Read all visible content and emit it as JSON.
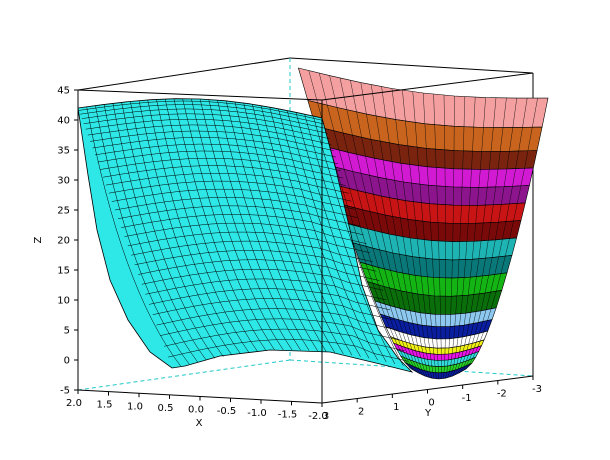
{
  "chart_data": {
    "type": "surface-3d",
    "title": "",
    "xlabel": "X",
    "ylabel": "Y",
    "zlabel": "Z",
    "x_ticks": [
      "2.0",
      "1.5",
      "1.0",
      "0.5",
      "0.0",
      "-0.5",
      "-1.0",
      "-1.5",
      "-2.0"
    ],
    "y_ticks": [
      "3",
      "2",
      "1",
      "0",
      "-1",
      "-2",
      "-3"
    ],
    "z_ticks": [
      "-5",
      "0",
      "5",
      "10",
      "15",
      "20",
      "25",
      "30",
      "35",
      "40",
      "45"
    ],
    "xlim": [
      -2,
      2
    ],
    "ylim": [
      -3,
      3
    ],
    "zlim": [
      -5,
      45
    ],
    "surface_left": {
      "description_x_range": [
        -2,
        2
      ],
      "profile_z": [
        41.5,
        30,
        20,
        11,
        5,
        1.5,
        0,
        0.5,
        2,
        4,
        6
      ]
    },
    "surface_right_bands": [
      {
        "z_range": [
          40,
          45
        ],
        "color": "#f4a0a0"
      },
      {
        "z_range": [
          36,
          40
        ],
        "color": "#c8641e"
      },
      {
        "z_range": [
          33,
          36
        ],
        "color": "#7a2410"
      },
      {
        "z_range": [
          30,
          33
        ],
        "color": "#d21ad2"
      },
      {
        "z_range": [
          27,
          30
        ],
        "color": "#8c148c"
      },
      {
        "z_range": [
          24,
          27
        ],
        "color": "#c81414"
      },
      {
        "z_range": [
          21,
          24
        ],
        "color": "#7a0a0a"
      },
      {
        "z_range": [
          18,
          21
        ],
        "color": "#1eb4b4"
      },
      {
        "z_range": [
          15,
          18
        ],
        "color": "#0a7878"
      },
      {
        "z_range": [
          12,
          15
        ],
        "color": "#14b414"
      },
      {
        "z_range": [
          9,
          12
        ],
        "color": "#0a6e0a"
      },
      {
        "z_range": [
          7,
          9
        ],
        "color": "#8cc8f0"
      },
      {
        "z_range": [
          5,
          7
        ],
        "color": "#0a1ea0"
      },
      {
        "z_range": [
          3.5,
          5
        ],
        "color": "#ffffff"
      },
      {
        "z_range": [
          2.5,
          3.5
        ],
        "color": "#f0f014"
      },
      {
        "z_range": [
          1.5,
          2.5
        ],
        "color": "#e614e6"
      },
      {
        "z_range": [
          0.5,
          1.5
        ],
        "color": "#32dcdc"
      },
      {
        "z_range": [
          -0.5,
          0.5
        ],
        "color": "#28d228"
      },
      {
        "z_range": [
          -1.5,
          -0.5
        ],
        "color": "#0a1ea0"
      }
    ],
    "colors": {
      "left_surface": "#2ee8e8",
      "mesh": "#000000",
      "box": "#000000",
      "floor_guides": "#20c8c8"
    },
    "grid": false,
    "legend": "none"
  }
}
